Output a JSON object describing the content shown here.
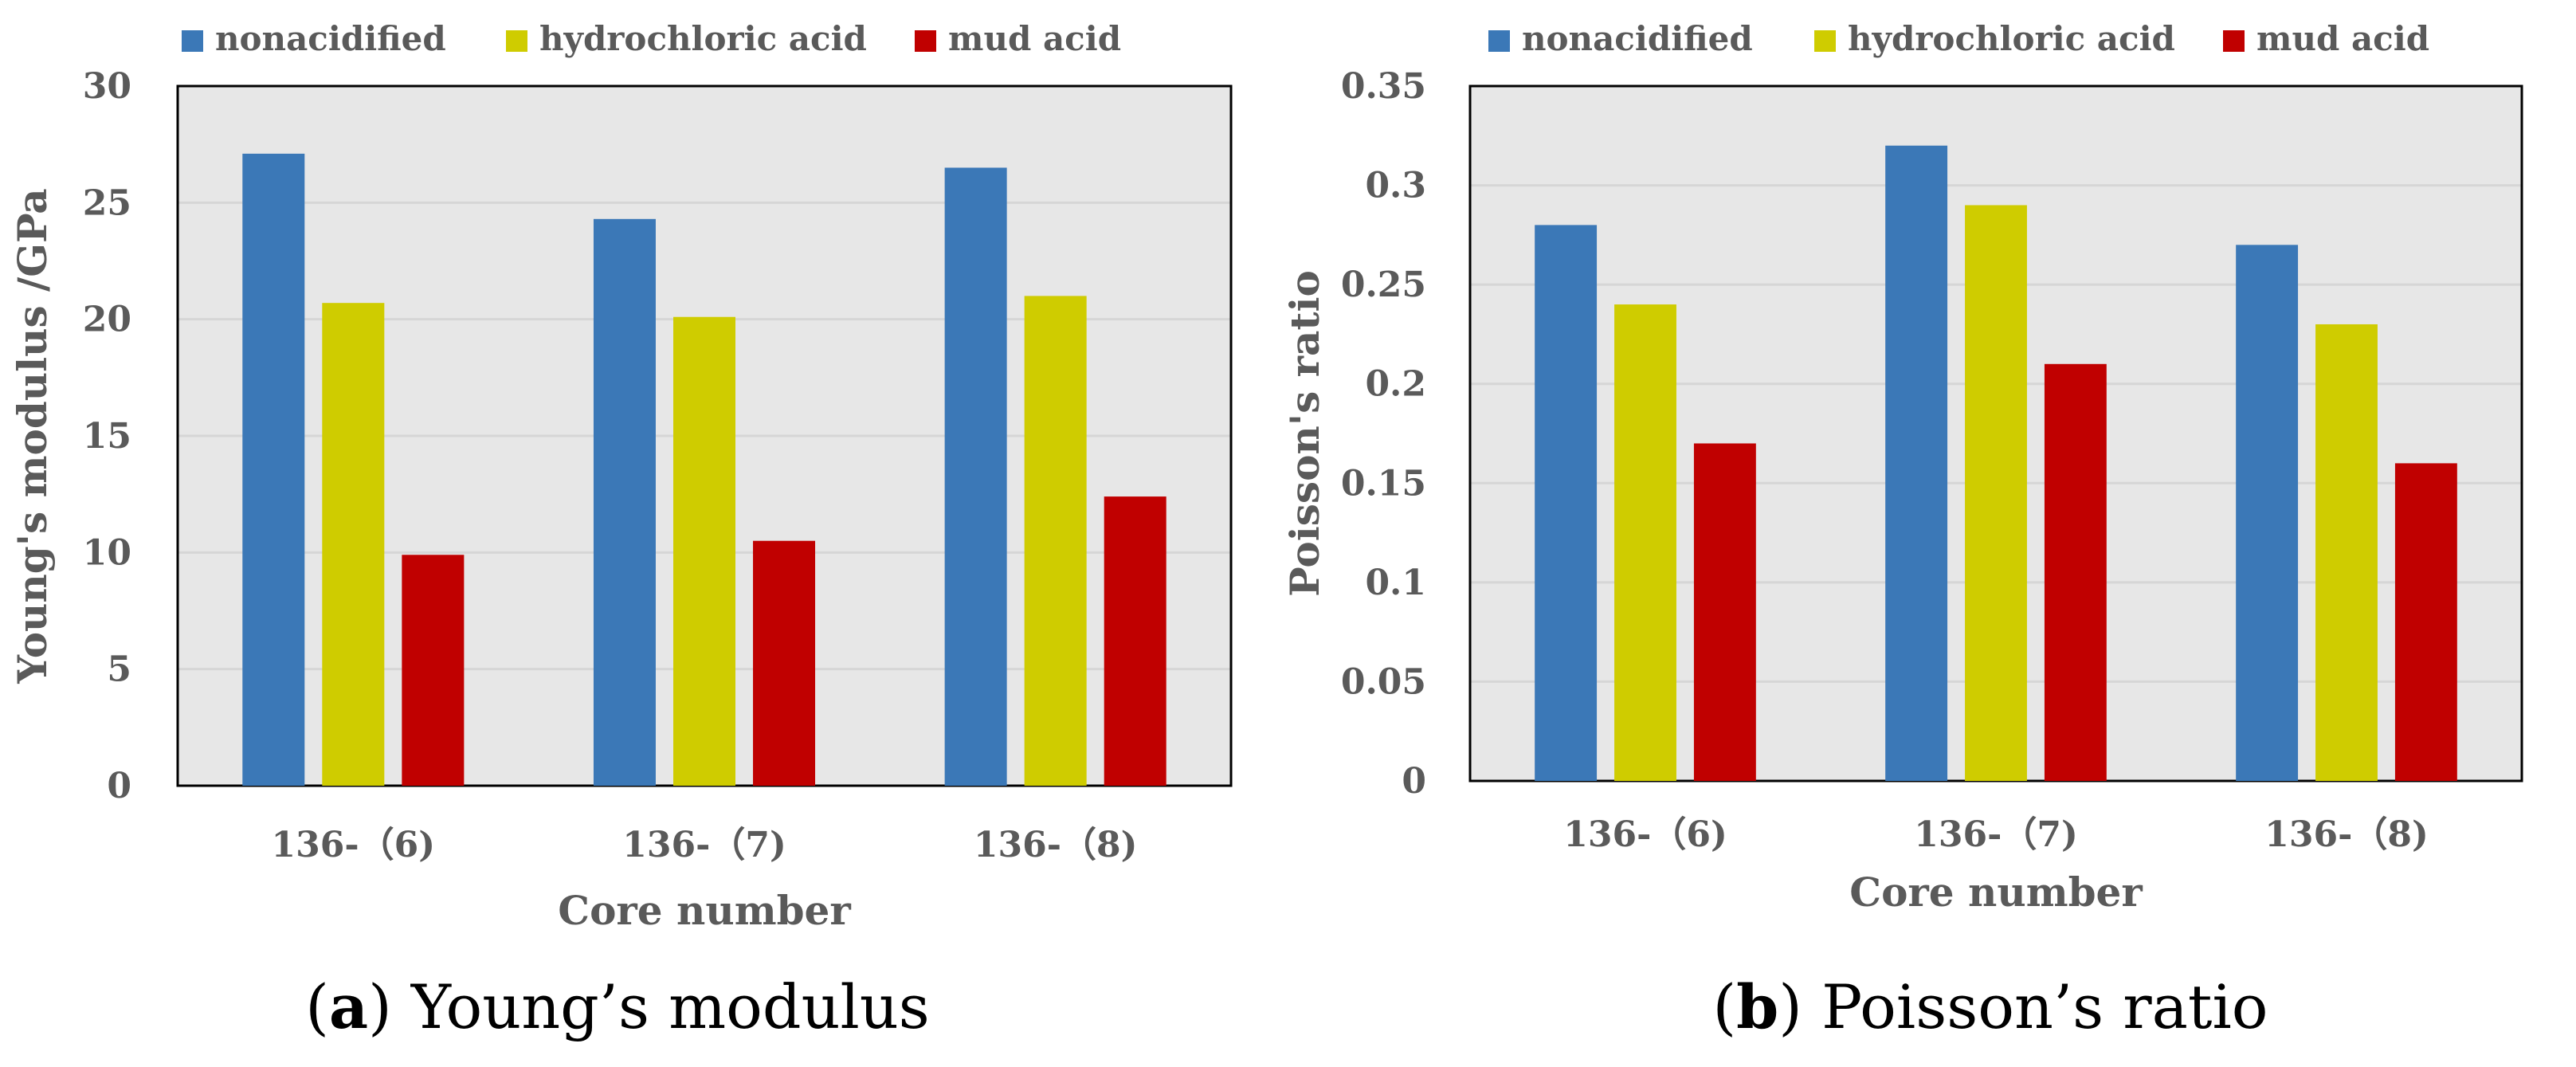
{
  "colors": {
    "plot_bg": "#e7e7e7",
    "gridline": "#d6d6d6",
    "axis_text": "#5a5a5a",
    "series": [
      "#3b78b7",
      "#cfcc00",
      "#c00000"
    ]
  },
  "chart_data": [
    {
      "type": "bar",
      "title": "",
      "categories": [
        "136-（6)",
        "136-（7)",
        "136-（8)"
      ],
      "series": [
        {
          "name": "nonacidified",
          "values": [
            27.1,
            24.3,
            26.5
          ]
        },
        {
          "name": "hydrochloric acid",
          "values": [
            20.7,
            20.1,
            21.0
          ]
        },
        {
          "name": "mud acid",
          "values": [
            9.9,
            10.5,
            12.4
          ]
        }
      ],
      "xlabel": "Core number",
      "ylabel": "Young's modulus /GPa",
      "ylim": [
        0,
        30
      ],
      "yticks": [
        "0",
        "5",
        "10",
        "15",
        "20",
        "25",
        "30"
      ],
      "grid": true,
      "legend": "top",
      "caption_letter": "a",
      "caption_text": " Young’s modulus",
      "caption_open": "(",
      "caption_close": ")"
    },
    {
      "type": "bar",
      "title": "",
      "categories": [
        "136-（6)",
        "136-（7)",
        "136-（8)"
      ],
      "series": [
        {
          "name": "nonacidified",
          "values": [
            0.28,
            0.32,
            0.27
          ]
        },
        {
          "name": "hydrochloric acid",
          "values": [
            0.24,
            0.29,
            0.23
          ]
        },
        {
          "name": "mud acid",
          "values": [
            0.17,
            0.21,
            0.16
          ]
        }
      ],
      "xlabel": "Core number",
      "ylabel": "Poisson's ratio",
      "ylim": [
        0,
        0.35
      ],
      "yticks": [
        "0",
        "0.05",
        "0.1",
        "0.15",
        "0.2",
        "0.25",
        "0.3",
        "0.35"
      ],
      "grid": true,
      "legend": "top",
      "caption_letter": "b",
      "caption_text": " Poisson’s ratio",
      "caption_open": "(",
      "caption_close": ")"
    }
  ]
}
